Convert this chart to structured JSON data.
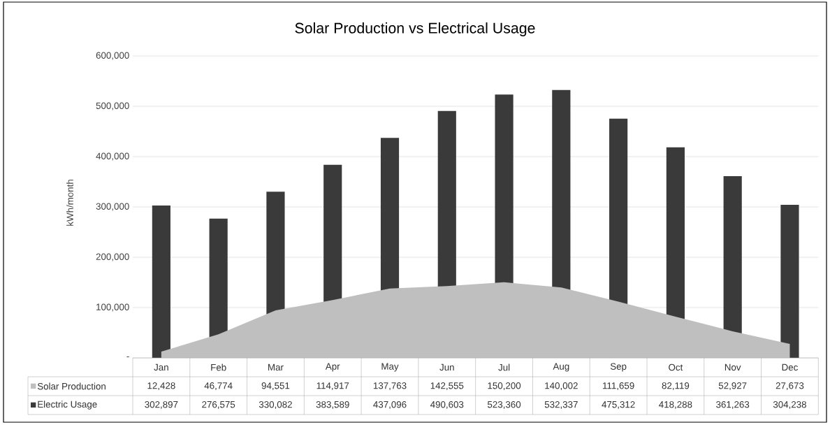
{
  "chart_data": {
    "type": "bar",
    "title": "Solar Production vs Electrical Usage",
    "ylabel": "kWh/month",
    "categories": [
      "Jan",
      "Feb",
      "Mar",
      "Apr",
      "May",
      "Jun",
      "Jul",
      "Aug",
      "Sep",
      "Oct",
      "Nov",
      "Dec"
    ],
    "series": [
      {
        "name": "Solar Production",
        "type": "area",
        "color": "#bfbfbf",
        "values": [
          12428,
          46774,
          94551,
          114917,
          137763,
          142555,
          150200,
          140002,
          111659,
          82119,
          52927,
          27673
        ],
        "value_labels": [
          "12,428",
          "46,774",
          "94,551",
          "114,917",
          "137,763",
          "142,555",
          "150,200",
          "140,002",
          "111,659",
          "82,119",
          "52,927",
          "27,673"
        ]
      },
      {
        "name": "Electric Usage",
        "type": "bar",
        "color": "#3a3a3a",
        "values": [
          302897,
          276575,
          330082,
          383589,
          437096,
          490603,
          523360,
          532337,
          475312,
          418288,
          361263,
          304238
        ],
        "value_labels": [
          "302,897",
          "276,575",
          "330,082",
          "383,589",
          "437,096",
          "490,603",
          "523,360",
          "532,337",
          "475,312",
          "418,288",
          "361,263",
          "304,238"
        ]
      }
    ],
    "ylim": [
      0,
      600000
    ],
    "yticks": [
      {
        "value": 0,
        "label": "-"
      },
      {
        "value": 100000,
        "label": "100,000"
      },
      {
        "value": 200000,
        "label": "200,000"
      },
      {
        "value": 300000,
        "label": "300,000"
      },
      {
        "value": 400000,
        "label": "400,000"
      },
      {
        "value": 500000,
        "label": "500,000"
      },
      {
        "value": 600000,
        "label": "600,000"
      }
    ],
    "grid": "y",
    "legend": "bottom left"
  }
}
